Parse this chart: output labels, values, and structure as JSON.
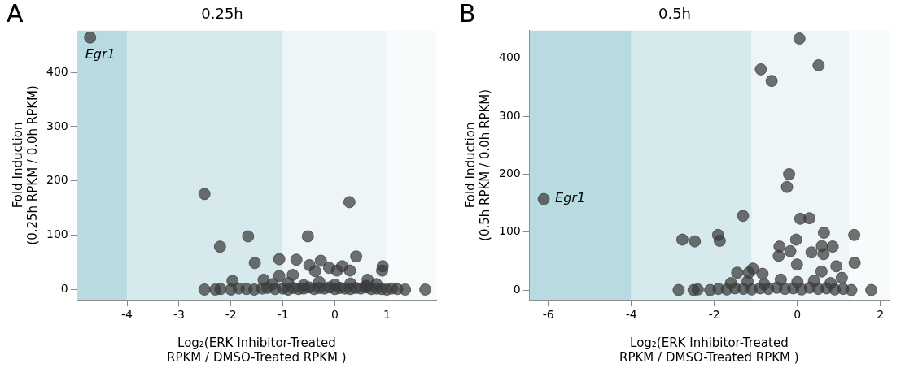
{
  "chart_data": [
    {
      "type": "scatter",
      "title": "0.25h",
      "xlabel": "Log₂(ERK Inhibitor-Treated\nRPKM / DMSO-Treated RPKM )",
      "ylabel": "Fold Induction\n(0.25h RPKM / 0.0h RPKM)",
      "annotations": [
        "A",
        {
          "text": "Egr1",
          "x": -4.71,
          "y": 464
        }
      ],
      "xlim": [
        -4.96,
        1.95
      ],
      "xticks": [
        -4,
        -3,
        -2,
        -1,
        0,
        1
      ],
      "ylim": [
        -19,
        477
      ],
      "yticks": [
        0,
        100,
        200,
        300,
        400
      ],
      "grid": false,
      "legend": false,
      "marker": "circle",
      "bands": [
        {
          "axis": "x",
          "from": -4.96,
          "to": -4,
          "color": "#b8dbe2"
        },
        {
          "axis": "x",
          "from": -4,
          "to": -1,
          "color": "#d6eaee"
        },
        {
          "axis": "x",
          "from": -1,
          "to": 1,
          "color": "#eef5f8"
        },
        {
          "axis": "x",
          "from": 1,
          "to": 1.95,
          "color": "#f8fbfb"
        }
      ],
      "series": [
        {
          "color": "#3a3a3a",
          "x": [
            -4.71,
            -2.51,
            0.28,
            -1.67,
            -0.52,
            -2.21,
            0.41,
            -1.07,
            -0.74,
            -1.54,
            -0.27,
            -0.49,
            0.92,
            0.14,
            0.91,
            -0.11,
            -0.38,
            0.29,
            0.04,
            -1.07,
            -0.81,
            -1.97,
            -1.37,
            0.63,
            -2.51,
            -2.3,
            -2.2,
            -2.0,
            -1.85,
            -1.7,
            -1.55,
            -1.4,
            -1.3,
            -1.15,
            -1.0,
            -0.9,
            -0.8,
            -0.7,
            -0.6,
            -0.5,
            -0.4,
            -0.3,
            -0.2,
            -0.1,
            0,
            0.1,
            0.2,
            0.3,
            0.4,
            0.5,
            0.6,
            0.7,
            0.8,
            0.9,
            1.0,
            1.1,
            1.2,
            1.35,
            1.74,
            -1.2,
            -0.9,
            -0.6,
            -0.3,
            0.0,
            0.3,
            0.6,
            0.8
          ],
          "values": [
            464,
            176,
            161,
            98,
            98,
            79,
            61,
            56,
            55,
            49,
            53,
            45,
            43,
            43,
            35,
            40,
            34,
            35,
            35,
            25,
            27,
            16,
            18,
            18,
            0,
            0,
            1,
            0,
            2,
            1,
            0,
            2,
            3,
            1,
            2,
            0,
            3,
            1,
            2,
            4,
            1,
            3,
            2,
            4,
            1,
            3,
            2,
            1,
            3,
            2,
            4,
            1,
            2,
            1,
            0,
            2,
            1,
            0,
            0,
            10,
            12,
            8,
            14,
            9,
            11,
            7,
            10
          ]
        }
      ]
    },
    {
      "type": "scatter",
      "title": "0.5h",
      "xlabel": "Log₂(ERK Inhibitor-Treated\nRPKM / DMSO-Treated RPKM )",
      "ylabel": "Fold Induction\n(0.5h RPKM / 0.0h RPKM)",
      "annotations": [
        "B",
        {
          "text": "Egr1",
          "x": -6.11,
          "y": 157
        }
      ],
      "xlim": [
        -6.45,
        2.2
      ],
      "xticks": [
        -6,
        -4,
        -2,
        0,
        2
      ],
      "ylim": [
        -17,
        448
      ],
      "yticks": [
        0,
        100,
        200,
        300,
        400
      ],
      "grid": false,
      "legend": false,
      "marker": "circle",
      "bands": [
        {
          "axis": "x",
          "from": -6.45,
          "to": -4,
          "color": "#b8dbe2"
        },
        {
          "axis": "x",
          "from": -4,
          "to": -1.1,
          "color": "#d6eaee"
        },
        {
          "axis": "x",
          "from": -1.1,
          "to": 1.25,
          "color": "#eef5f8"
        },
        {
          "axis": "x",
          "from": 1.25,
          "to": 2.2,
          "color": "#f8fbfb"
        }
      ],
      "series": [
        {
          "color": "#3a3a3a",
          "x": [
            -6.11,
            0.05,
            0.51,
            -0.88,
            -0.62,
            -0.2,
            -0.25,
            -1.31,
            0.07,
            0.29,
            0.64,
            1.37,
            -1.91,
            -1.87,
            -2.77,
            -2.47,
            -0.03,
            -0.43,
            0.85,
            0.59,
            0.34,
            0.63,
            -0.17,
            1.38,
            0.94,
            -0.01,
            -1.07,
            -1.17,
            -1.45,
            -0.84,
            -0.45,
            0.58,
            1.07,
            -2.86,
            -2.5,
            -2.4,
            -2.1,
            -1.9,
            -1.7,
            -1.5,
            -1.3,
            -1.1,
            -0.9,
            -0.7,
            -0.5,
            -0.3,
            -0.1,
            0.1,
            0.3,
            0.5,
            0.7,
            0.9,
            1.1,
            1.3,
            1.78,
            -1.6,
            -1.2,
            -0.8,
            -0.4,
            0,
            0.4,
            0.8
          ],
          "values": [
            157,
            434,
            388,
            381,
            361,
            200,
            178,
            128,
            123,
            124,
            99,
            95,
            95,
            85,
            87,
            84,
            87,
            75,
            75,
            76,
            65,
            62,
            67,
            47,
            41,
            44,
            37,
            30,
            30,
            28,
            59,
            32,
            21,
            0,
            0,
            1,
            0,
            2,
            1,
            3,
            2,
            1,
            3,
            2,
            4,
            2,
            3,
            1,
            4,
            2,
            3,
            1,
            2,
            0,
            0,
            12,
            15,
            10,
            18,
            14,
            16,
            12
          ]
        }
      ]
    }
  ]
}
